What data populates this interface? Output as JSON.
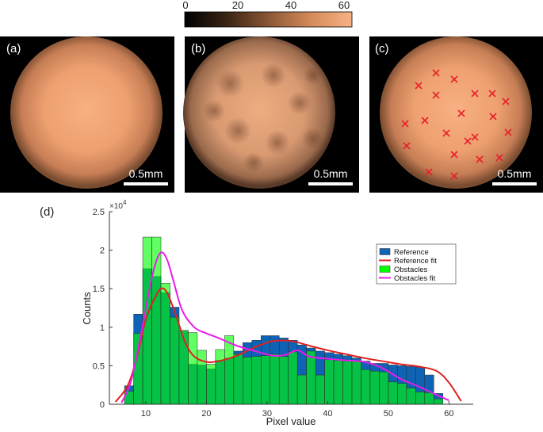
{
  "colorbar": {
    "ticks": [
      "0",
      "20",
      "40",
      "60"
    ],
    "colors": [
      "#000000",
      "#3a2414",
      "#8a5634",
      "#d48a5a",
      "#f7b283"
    ]
  },
  "panels": [
    {
      "label": "(a)",
      "scale": "0.5mm"
    },
    {
      "label": "(b)",
      "scale": "0.5mm"
    },
    {
      "label": "(c)",
      "scale": "0.5mm"
    }
  ],
  "chart_data": {
    "type": "bar",
    "panel_label": "(d)",
    "title": "",
    "xlabel": "Pixel value",
    "ylabel": "Counts",
    "y_exponent": "×10",
    "y_exponent_power": "4",
    "xlim": [
      4,
      64
    ],
    "ylim": [
      0,
      25000
    ],
    "xticks": [
      10,
      20,
      30,
      40,
      50,
      60
    ],
    "yticks": [
      0,
      5000,
      10000,
      15000,
      20000,
      25000
    ],
    "ytick_labels": [
      "0",
      "0.5",
      "1",
      "1.5",
      "2",
      "2.5"
    ],
    "bin_width": 1.5,
    "bin_starts": [
      6.5,
      8,
      9.5,
      11,
      12.5,
      14,
      15.5,
      17,
      18.5,
      20,
      21.5,
      23,
      24.5,
      26,
      27.5,
      29,
      30.5,
      32,
      33.5,
      35,
      36.5,
      38,
      39.5,
      41,
      42.5,
      44,
      45.5,
      47,
      48.5,
      50,
      51.5,
      53,
      54.5,
      56,
      57.5,
      59
    ],
    "series": [
      {
        "name": "Reference",
        "color": "#0e63b5",
        "values": [
          2400,
          11700,
          17600,
          16600,
          14500,
          12600,
          9500,
          5200,
          5100,
          4600,
          5700,
          6000,
          6900,
          8000,
          8300,
          8900,
          8900,
          8600,
          8300,
          7700,
          7300,
          6900,
          6700,
          6500,
          6300,
          6000,
          5600,
          5300,
          5300,
          5100,
          5000,
          4900,
          4800,
          3800,
          1400,
          0
        ]
      },
      {
        "name": "Obstacles",
        "color": "#00ff00",
        "values": [
          1700,
          9200,
          21700,
          21700,
          15700,
          11300,
          9600,
          9300,
          7000,
          5200,
          7100,
          8900,
          6500,
          6100,
          6200,
          6300,
          6500,
          6200,
          6800,
          3800,
          6900,
          3800,
          5800,
          5700,
          5600,
          5600,
          4500,
          4300,
          4200,
          2900,
          2700,
          2100,
          1600,
          1500,
          700,
          0
        ]
      }
    ],
    "fits": [
      {
        "name": "Reference fit",
        "color": "#e02020",
        "x": [
          5,
          7,
          8.5,
          10,
          11.5,
          12.5,
          13.5,
          15,
          16.5,
          18,
          20,
          22,
          25,
          28,
          31,
          34,
          37,
          40,
          43,
          46,
          49,
          52,
          55,
          58,
          60,
          62
        ],
        "y": [
          300,
          2400,
          6000,
          11000,
          13800,
          15000,
          14500,
          11500,
          8000,
          6200,
          5500,
          5600,
          6300,
          7400,
          8200,
          8200,
          7600,
          7000,
          6500,
          6000,
          5600,
          5200,
          4900,
          4300,
          2800,
          400
        ]
      },
      {
        "name": "Obstacles fit",
        "color": "#e81ce8",
        "x": [
          6,
          7.5,
          9,
          10.5,
          11.5,
          12.5,
          13.5,
          14.5,
          16,
          18,
          20,
          22,
          25,
          28,
          31,
          33,
          35,
          37,
          40,
          43,
          46,
          49,
          52,
          55,
          58,
          60
        ],
        "y": [
          200,
          2800,
          8200,
          14500,
          18000,
          19700,
          18800,
          16200,
          12200,
          10000,
          9200,
          8600,
          7600,
          6900,
          6300,
          6400,
          7000,
          6200,
          5900,
          5700,
          5500,
          4700,
          3300,
          2300,
          1200,
          500
        ]
      }
    ],
    "legend": [
      "Reference",
      "Reference fit",
      "Obstacles",
      "Obstacles fit"
    ],
    "legend_position": "top-right"
  }
}
